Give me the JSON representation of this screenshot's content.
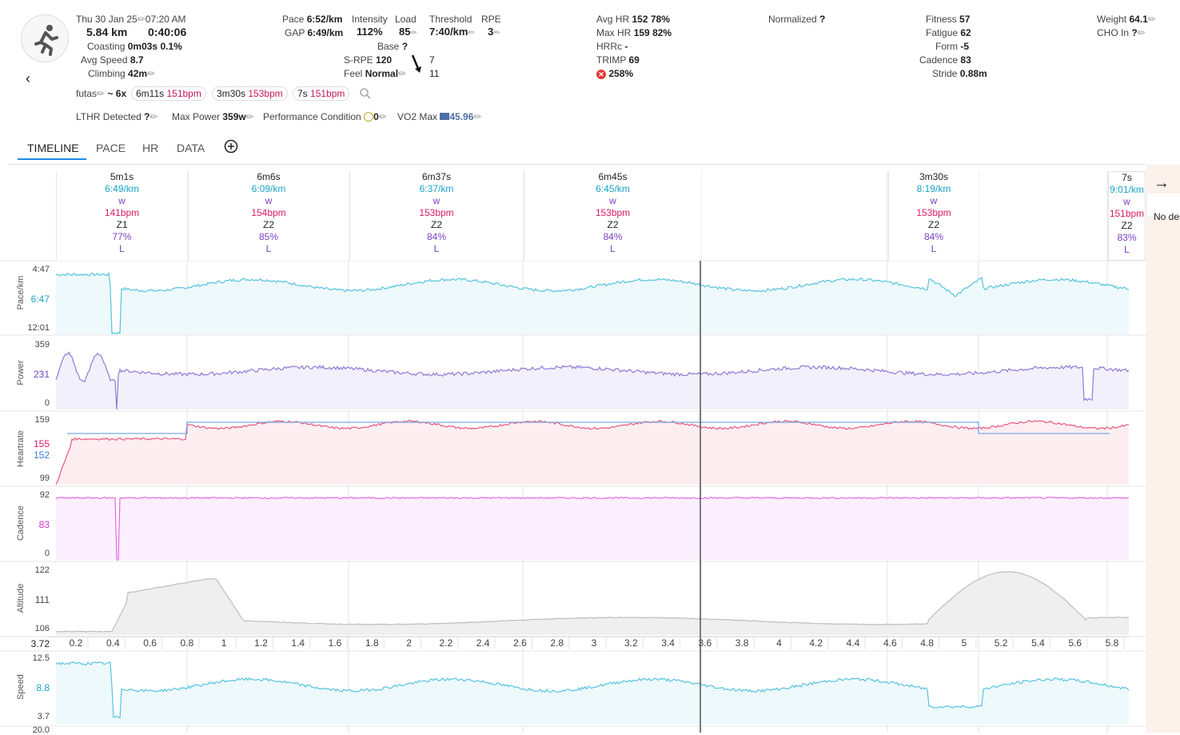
{
  "activity": {
    "date": "Thu 30 Jan 25",
    "time": "07:20 AM",
    "distance": "5.84 km",
    "duration": "0:40:06",
    "coasting_label": "Coasting",
    "coasting_value": "0m03s",
    "coasting_pct": "0.1%",
    "avg_speed_label": "Avg Speed",
    "avg_speed_value": "8.7",
    "climbing_label": "Climbing",
    "climbing_value": "42m"
  },
  "pace": {
    "pace_label": "Pace",
    "pace_value": "6:52/km",
    "gap_label": "GAP",
    "gap_value": "6:49/km",
    "intensity_label": "Intensity",
    "intensity_value": "112%",
    "load_label": "Load",
    "load_value": "85",
    "threshold_label": "Threshold",
    "threshold_value": "7:40/km",
    "rpe_label": "RPE",
    "rpe_value": "3",
    "base_label": "Base",
    "base_value": "?",
    "srpe_label": "S-RPE",
    "srpe_value": "120",
    "srpe_arrow_value": "7",
    "feel_label": "Feel",
    "feel_value": "Normal",
    "feel_arrow_value": "11"
  },
  "hr": {
    "avg_hr_label": "Avg HR",
    "avg_hr_value": "152",
    "avg_hr_pct": "78%",
    "max_hr_label": "Max HR",
    "max_hr_value": "159",
    "max_hr_pct": "82%",
    "hrrc_label": "HRRc",
    "hrrc_value": "-",
    "trimp_label": "TRIMP",
    "trimp_value": "69",
    "warn_value": "258%"
  },
  "normalized": {
    "label": "Normalized",
    "value": "?"
  },
  "fitness": {
    "fitness_label": "Fitness",
    "fitness_value": "57",
    "fatigue_label": "Fatigue",
    "fatigue_value": "62",
    "form_label": "Form",
    "form_value": "-5",
    "cadence_label": "Cadence",
    "cadence_value": "83",
    "stride_label": "Stride",
    "stride_value": "0.88m"
  },
  "weight": {
    "weight_label": "Weight",
    "weight_value": "64.1",
    "cho_label": "CHO In",
    "cho_value": "?"
  },
  "intervals": {
    "name": "futas",
    "summary_prefix": "~ 6x",
    "pills": [
      {
        "dur": "6m11s",
        "bpm": "151bpm"
      },
      {
        "dur": "3m30s",
        "bpm": "153bpm"
      },
      {
        "dur": "7s",
        "bpm": "151bpm"
      }
    ]
  },
  "extra": {
    "lthr_label": "LTHR Detected",
    "lthr_value": "?",
    "maxpower_label": "Max Power",
    "maxpower_value": "359w",
    "perf_label": "Performance Condition",
    "perf_value": "0",
    "vo2_label": "VO2 Max",
    "vo2_value": "45.96"
  },
  "tabs": [
    "TIMELINE",
    "PACE",
    "HR",
    "DATA"
  ],
  "laps": [
    {
      "time": "5m1s",
      "pace": "6:49/km",
      "w": "w",
      "hr": "141bpm",
      "zone": "Z1",
      "pct": "77%",
      "l": "L"
    },
    {
      "time": "6m6s",
      "pace": "6:09/km",
      "w": "w",
      "hr": "154bpm",
      "zone": "Z2",
      "pct": "85%",
      "l": "L"
    },
    {
      "time": "6m37s",
      "pace": "6:37/km",
      "w": "w",
      "hr": "153bpm",
      "zone": "Z2",
      "pct": "84%",
      "l": "L"
    },
    {
      "time": "6m45s",
      "pace": "6:45/km",
      "w": "w",
      "hr": "153bpm",
      "zone": "Z2",
      "pct": "84%",
      "l": "L"
    },
    {
      "time": "3m30s",
      "pace": "8:19/km",
      "w": "w",
      "hr": "153bpm",
      "zone": "Z2",
      "pct": "84%",
      "l": "L"
    },
    {
      "time": "7s",
      "pace": "9:01/km",
      "w": "w",
      "hr": "151bpm",
      "zone": "Z2",
      "pct": "83%",
      "l": "L"
    }
  ],
  "charts": {
    "pace": {
      "label": "Pace/km",
      "top": "4:47",
      "mid": "6:47",
      "bottom": "12:01"
    },
    "power": {
      "label": "Power",
      "top": "359",
      "mid": "231",
      "bottom": "0"
    },
    "hr": {
      "label": "Heartrate",
      "top": "159",
      "mid1": "155",
      "mid2": "152",
      "bottom": "99"
    },
    "cadence": {
      "label": "Cadence",
      "top": "92",
      "mid": "83",
      "bottom": "0"
    },
    "alt": {
      "label": "Altitude",
      "top": "122",
      "mid": "111",
      "bottom": "106"
    },
    "speed": {
      "label": "Speed",
      "top": "12.5",
      "mid": "8.8",
      "bottom": "3.7",
      "extra": "20.0"
    }
  },
  "xaxis": {
    "start": "3.72",
    "ticks": [
      "0.2",
      "0.4",
      "0.6",
      "0.8",
      "1",
      "1.2",
      "1.4",
      "1.6",
      "1.8",
      "2",
      "2.2",
      "2.4",
      "2.6",
      "2.8",
      "3",
      "3.2",
      "3.4",
      "3.6",
      "3.8",
      "4",
      "4.2",
      "4.4",
      "4.6",
      "4.8",
      "5",
      "5.2",
      "5.4",
      "5.6",
      "5.8"
    ]
  },
  "right_panel": {
    "text": "No des"
  },
  "colors": {
    "pace": "#56c3dd",
    "power": "#8f7ad6",
    "hr": "#e8587a",
    "hr_lap": "#7aa7e8",
    "cadence": "#e36be0",
    "alt": "#bdbdbd",
    "speed": "#56c3dd",
    "tab_active": "#1e88e5"
  }
}
